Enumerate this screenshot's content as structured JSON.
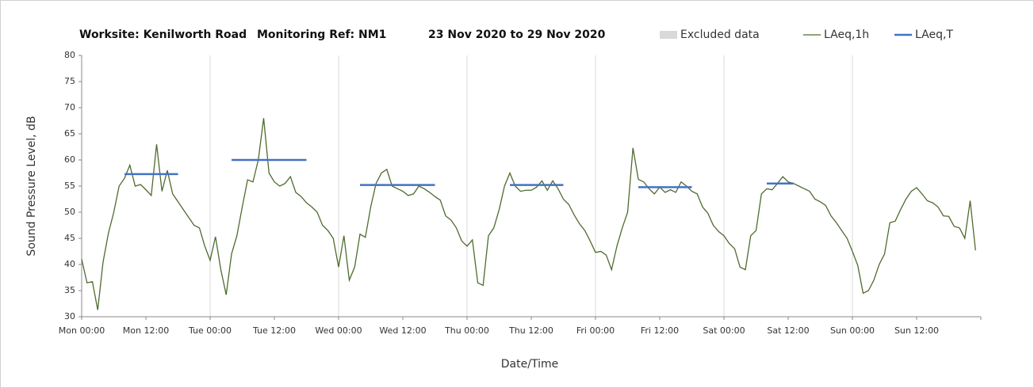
{
  "chart_data": {
    "type": "line",
    "title": [
      "Worksite: Kenilworth Road",
      "Monitoring Ref: NM1",
      "23 Nov 2020 to 29 Nov 2020"
    ],
    "xlabel": "Date/Time",
    "ylabel": "Sound Pressure Level, dB",
    "xlim": [
      0,
      168
    ],
    "ylim": [
      30,
      80
    ],
    "yticks": [
      30,
      35,
      40,
      45,
      50,
      55,
      60,
      65,
      70,
      75,
      80
    ],
    "xticks": [
      {
        "value": 0,
        "label": "Mon 00:00"
      },
      {
        "value": 12,
        "label": "Mon 12:00"
      },
      {
        "value": 24,
        "label": "Tue 00:00"
      },
      {
        "value": 36,
        "label": "Tue 12:00"
      },
      {
        "value": 48,
        "label": "Wed 00:00"
      },
      {
        "value": 60,
        "label": "Wed 12:00"
      },
      {
        "value": 72,
        "label": "Thu 00:00"
      },
      {
        "value": 84,
        "label": "Thu 12:00"
      },
      {
        "value": 96,
        "label": "Fri 00:00"
      },
      {
        "value": 108,
        "label": "Fri 12:00"
      },
      {
        "value": 120,
        "label": "Sat 00:00"
      },
      {
        "value": 132,
        "label": "Sat 12:00"
      },
      {
        "value": 144,
        "label": "Sun 00:00"
      },
      {
        "value": 156,
        "label": "Sun 12:00"
      }
    ],
    "grid": true,
    "series": [
      {
        "name": "Excluded data",
        "color": "#d9d9d9",
        "values": []
      },
      {
        "name": "LAeq,1h",
        "color": "#4f6b2e",
        "x": [
          0,
          1,
          2,
          3,
          4,
          5,
          6,
          7,
          8,
          9,
          10,
          11,
          12,
          13,
          14,
          15,
          16,
          17,
          18,
          19,
          20,
          21,
          22,
          23,
          24,
          25,
          26,
          27,
          28,
          29,
          30,
          31,
          32,
          33,
          34,
          35,
          36,
          37,
          38,
          39,
          40,
          41,
          42,
          43,
          44,
          45,
          46,
          47,
          48,
          49,
          50,
          51,
          52,
          53,
          54,
          55,
          56,
          57,
          58,
          59,
          60,
          61,
          62,
          63,
          64,
          65,
          66,
          67,
          68,
          69,
          70,
          71,
          72,
          73,
          74,
          75,
          76,
          77,
          78,
          79,
          80,
          81,
          82,
          83,
          84,
          85,
          86,
          87,
          88,
          89,
          90,
          91,
          92,
          93,
          94,
          95,
          96,
          97,
          98,
          99,
          100,
          101,
          102,
          103,
          104,
          105,
          106,
          107,
          108,
          109,
          110,
          111,
          112,
          113,
          114,
          115,
          116,
          117,
          118,
          119,
          120,
          121,
          122,
          123,
          124,
          125,
          126,
          127,
          128,
          129,
          130,
          131,
          132,
          133,
          134,
          135,
          136,
          137,
          138,
          139,
          140,
          141,
          142,
          143,
          144,
          145,
          146,
          147,
          148,
          149,
          150,
          151,
          152,
          153,
          154,
          155,
          156,
          157,
          158,
          159,
          160,
          161,
          162,
          163,
          164,
          165,
          166,
          167
        ],
        "values": [
          41,
          36.5,
          36.7,
          31.3,
          40.5,
          46,
          50,
          55,
          56.5,
          59,
          55,
          55.3,
          54.3,
          53.2,
          63,
          54,
          58,
          53.5,
          52,
          50.5,
          49,
          47.5,
          47,
          43.5,
          40.8,
          45.3,
          39,
          34.2,
          42,
          45.5,
          51,
          56.2,
          55.8,
          60,
          68,
          57.5,
          55.8,
          55,
          55.5,
          56.8,
          53.8,
          53,
          51.8,
          51,
          50,
          47.5,
          46.5,
          45,
          39.5,
          45.5,
          37,
          39.5,
          45.8,
          45.2,
          51,
          55.5,
          57.5,
          58.2,
          55,
          54.5,
          54,
          53.2,
          53.5,
          55,
          54.5,
          53.8,
          53,
          52.3,
          49.3,
          48.5,
          47,
          44.5,
          43.5,
          44.7,
          36.5,
          36,
          45.5,
          47,
          50.5,
          55,
          57.5,
          55,
          54,
          54.2,
          54.2,
          54.8,
          56,
          54.2,
          56,
          54.5,
          52.5,
          51.5,
          49.5,
          47.8,
          46.5,
          44.5,
          42.3,
          42.5,
          41.8,
          39,
          43.5,
          47,
          50,
          62.3,
          56.3,
          55.8,
          54.5,
          53.5,
          54.8,
          53.8,
          54.3,
          53.8,
          55.8,
          55,
          54,
          53.5,
          51,
          49.8,
          47.5,
          46.3,
          45.5,
          44,
          43,
          39.5,
          39,
          45.5,
          46.5,
          53.5,
          54.5,
          54.3,
          55.5,
          56.8,
          55.8,
          55.5,
          55,
          54.5,
          54,
          52.5,
          52,
          51.3,
          49.3,
          48,
          46.5,
          45,
          42.5,
          39.8,
          34.5,
          35,
          37,
          40,
          42,
          48,
          48.3,
          50.5,
          52.5,
          54,
          54.7,
          53.5,
          52.2,
          51.8,
          51,
          49.3,
          49.2,
          47.3,
          47,
          45,
          52.2,
          42.7
        ]
      },
      {
        "name": "LAeq,T",
        "color": "#4472c4",
        "values": [
          57.3,
          60,
          55.2,
          55.2,
          54.8,
          55.5
        ],
        "x_ranges": [
          [
            8,
            18
          ],
          [
            28,
            42
          ],
          [
            52,
            66
          ],
          [
            80,
            90
          ],
          [
            104,
            114
          ],
          [
            128,
            133
          ]
        ]
      }
    ]
  }
}
